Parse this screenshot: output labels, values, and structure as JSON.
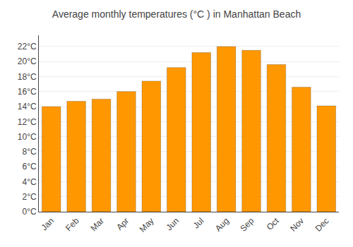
{
  "chart_data": {
    "type": "bar",
    "title": "Average monthly temperatures (°C ) in Manhattan Beach",
    "categories": [
      "Jan",
      "Feb",
      "Mar",
      "Apr",
      "May",
      "Jun",
      "Jul",
      "Aug",
      "Sep",
      "Oct",
      "Nov",
      "Dec"
    ],
    "values": [
      14.0,
      14.7,
      15.0,
      16.0,
      17.4,
      19.2,
      21.2,
      22.0,
      21.5,
      19.6,
      16.6,
      14.1
    ],
    "color": "#FF9800",
    "ylim": [
      0,
      23.5
    ],
    "yticks": [
      {
        "value": 0,
        "label": "0°C"
      },
      {
        "value": 2,
        "label": "2°C"
      },
      {
        "value": 4,
        "label": "4°C"
      },
      {
        "value": 6,
        "label": "6°C"
      },
      {
        "value": 8,
        "label": "8°C"
      },
      {
        "value": 10,
        "label": "10°C"
      },
      {
        "value": 12,
        "label": "12°C"
      },
      {
        "value": 14,
        "label": "14°C"
      },
      {
        "value": 16,
        "label": "16°C"
      },
      {
        "value": 18,
        "label": "18°C"
      },
      {
        "value": 20,
        "label": "20°C"
      },
      {
        "value": 22,
        "label": "22°C"
      }
    ],
    "grid": true
  }
}
